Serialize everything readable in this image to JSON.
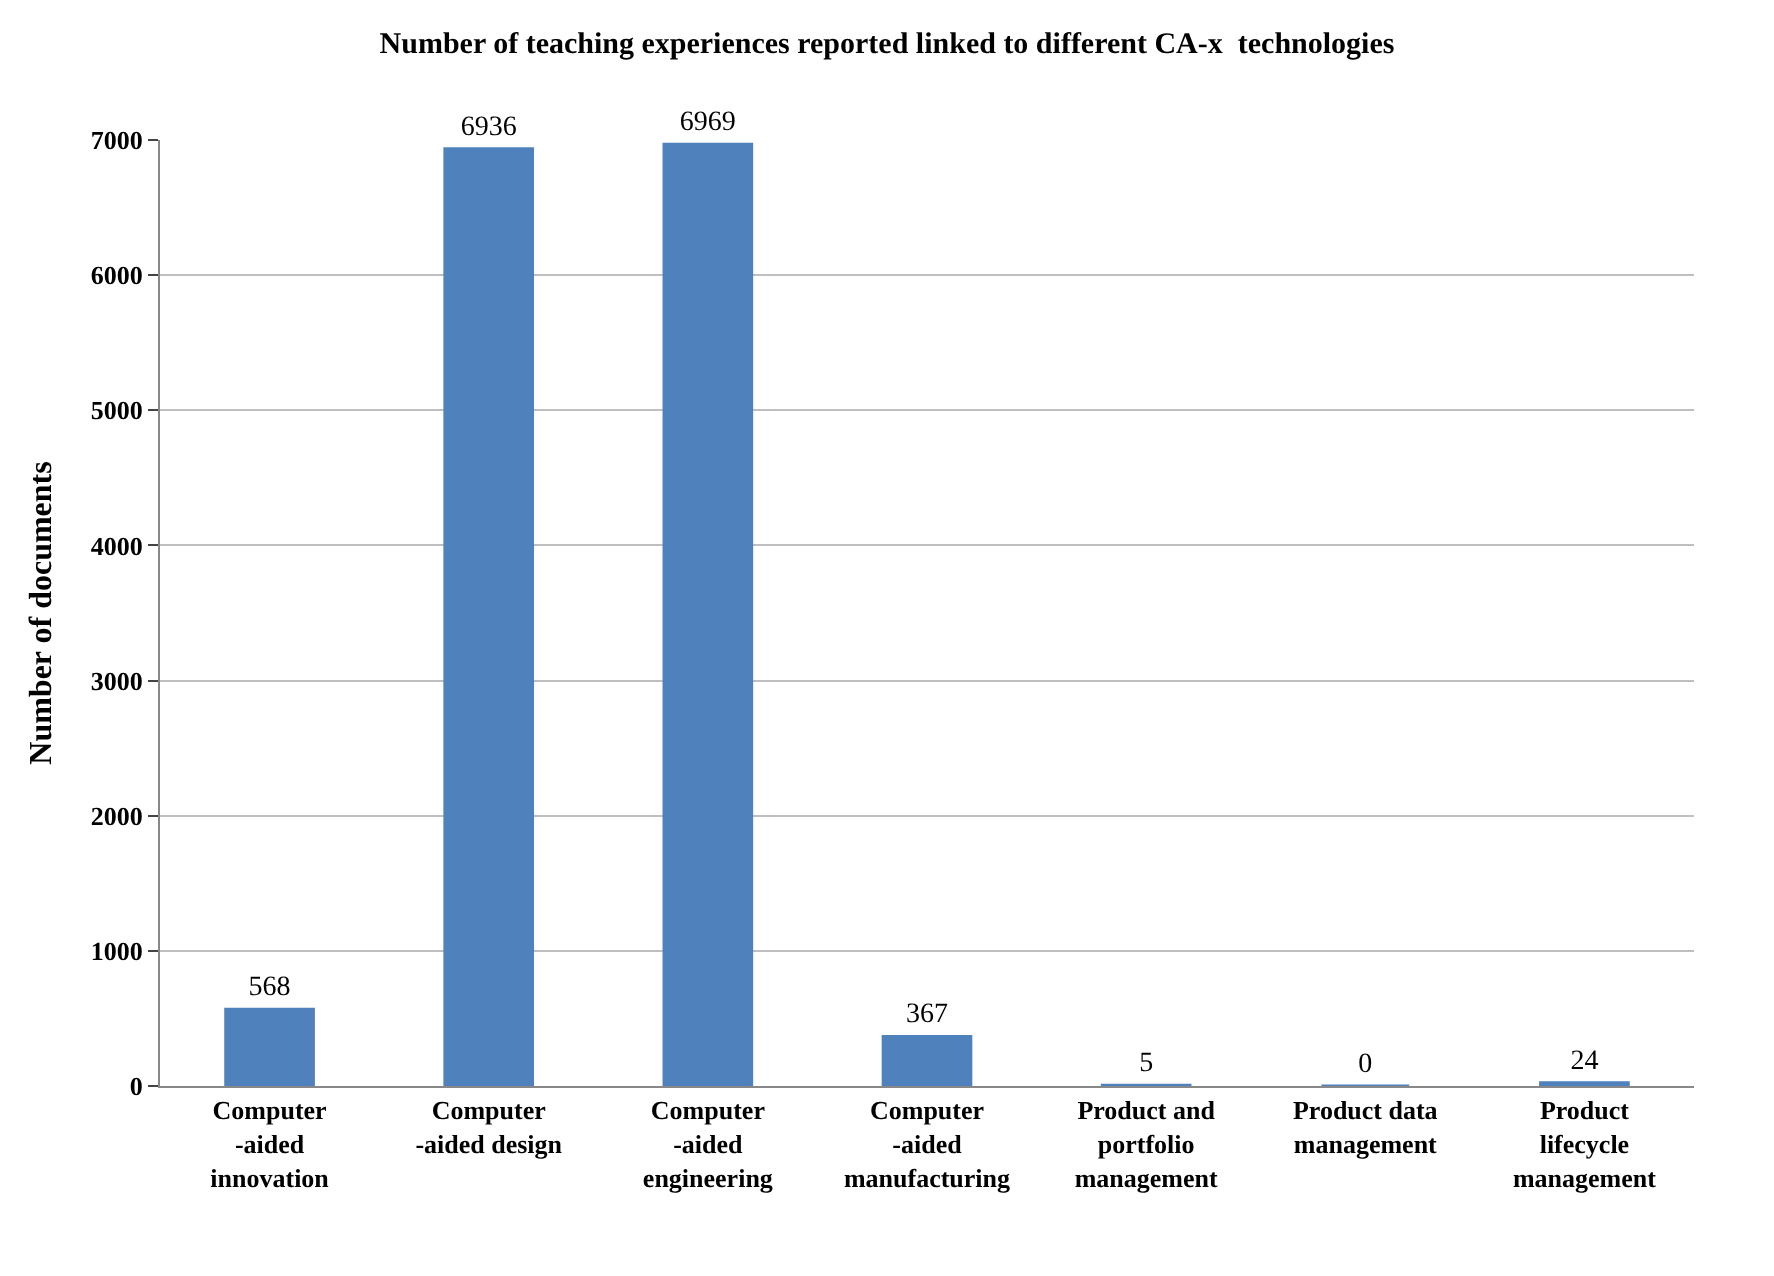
{
  "chart_data": {
    "type": "bar",
    "title": "Number of teaching experiences reported linked to different CA-x  technologies",
    "ylabel": "Number of documents",
    "categories": [
      "Computer\n-aided\ninnovation",
      "Computer\n-aided design",
      "Computer\n-aided\nengineering",
      "Computer\n-aided\nmanufacturing",
      "Product and\nportfolio\nmanagement",
      "Product data\nmanagement",
      "Product\nlifecycle\nmanagement"
    ],
    "values": [
      568,
      6936,
      6969,
      367,
      5,
      0,
      24
    ],
    "color": "#4f81bd",
    "ylim": [
      0,
      7000
    ],
    "yticks": [
      0,
      1000,
      2000,
      3000,
      4000,
      5000,
      6000,
      7000
    ],
    "grid": "y",
    "data_labels": true
  }
}
